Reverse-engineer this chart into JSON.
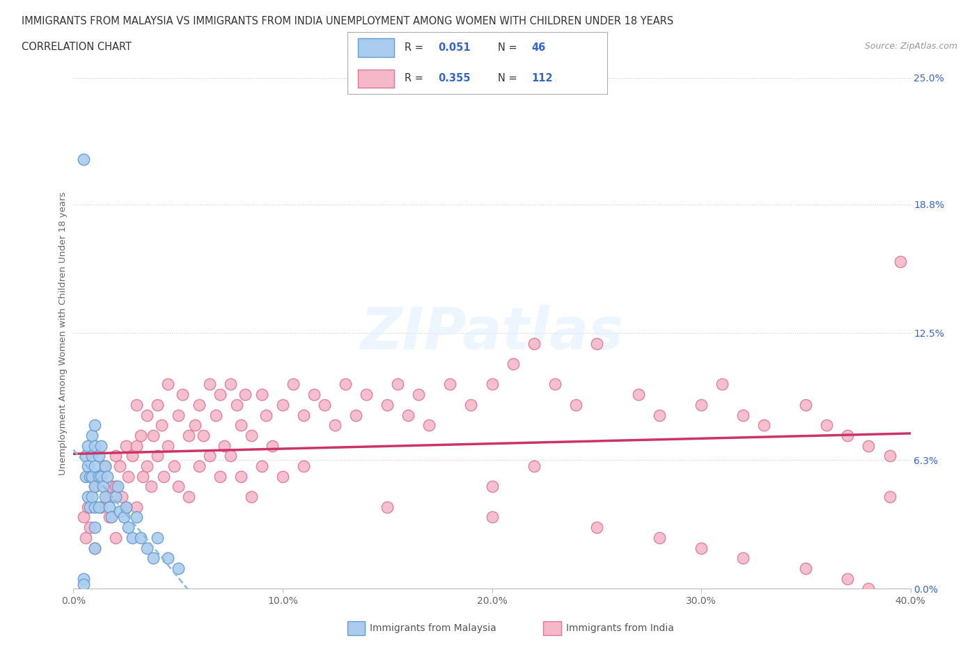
{
  "title_line1": "IMMIGRANTS FROM MALAYSIA VS IMMIGRANTS FROM INDIA UNEMPLOYMENT AMONG WOMEN WITH CHILDREN UNDER 18 YEARS",
  "title_line2": "CORRELATION CHART",
  "source_text": "Source: ZipAtlas.com",
  "ylabel": "Unemployment Among Women with Children Under 18 years",
  "xlim": [
    0.0,
    0.4
  ],
  "ylim": [
    0.0,
    0.25
  ],
  "xticks": [
    0.0,
    0.1,
    0.2,
    0.3,
    0.4
  ],
  "xticklabels": [
    "0.0%",
    "10.0%",
    "20.0%",
    "30.0%",
    "40.0%"
  ],
  "ytick_positions": [
    0.0,
    0.063,
    0.125,
    0.188,
    0.25
  ],
  "ytick_labels_right": [
    "0.0%",
    "6.3%",
    "12.5%",
    "18.8%",
    "25.0%"
  ],
  "grid_color": "#cccccc",
  "background_color": "#ffffff",
  "malaysia_color": "#aaccee",
  "malaysia_edge_color": "#6699cc",
  "india_color": "#f5b8c8",
  "india_edge_color": "#dd7799",
  "malaysia_R": "0.051",
  "malaysia_N": "46",
  "india_R": "0.355",
  "india_N": "112",
  "legend_R_color": "#3366cc",
  "watermark_text": "ZIPatlas",
  "india_trend_color": "#cc3366",
  "malaysia_trend_color": "#88bbdd",
  "malaysia_scatter_x": [
    0.005,
    0.005,
    0.005,
    0.006,
    0.006,
    0.007,
    0.007,
    0.007,
    0.008,
    0.008,
    0.009,
    0.009,
    0.009,
    0.009,
    0.01,
    0.01,
    0.01,
    0.01,
    0.01,
    0.01,
    0.01,
    0.012,
    0.012,
    0.012,
    0.013,
    0.013,
    0.014,
    0.015,
    0.015,
    0.016,
    0.017,
    0.018,
    0.02,
    0.021,
    0.022,
    0.024,
    0.025,
    0.026,
    0.028,
    0.03,
    0.032,
    0.035,
    0.038,
    0.04,
    0.045,
    0.05
  ],
  "malaysia_scatter_y": [
    0.21,
    0.005,
    0.002,
    0.065,
    0.055,
    0.07,
    0.06,
    0.045,
    0.055,
    0.04,
    0.075,
    0.065,
    0.055,
    0.045,
    0.08,
    0.07,
    0.06,
    0.05,
    0.04,
    0.03,
    0.02,
    0.065,
    0.055,
    0.04,
    0.07,
    0.055,
    0.05,
    0.06,
    0.045,
    0.055,
    0.04,
    0.035,
    0.045,
    0.05,
    0.038,
    0.035,
    0.04,
    0.03,
    0.025,
    0.035,
    0.025,
    0.02,
    0.015,
    0.025,
    0.015,
    0.01
  ],
  "india_scatter_x": [
    0.005,
    0.006,
    0.007,
    0.008,
    0.01,
    0.01,
    0.012,
    0.013,
    0.015,
    0.016,
    0.017,
    0.018,
    0.02,
    0.02,
    0.02,
    0.022,
    0.023,
    0.025,
    0.025,
    0.026,
    0.028,
    0.03,
    0.03,
    0.03,
    0.032,
    0.033,
    0.035,
    0.035,
    0.037,
    0.038,
    0.04,
    0.04,
    0.042,
    0.043,
    0.045,
    0.045,
    0.048,
    0.05,
    0.05,
    0.052,
    0.055,
    0.055,
    0.058,
    0.06,
    0.06,
    0.062,
    0.065,
    0.065,
    0.068,
    0.07,
    0.07,
    0.072,
    0.075,
    0.075,
    0.078,
    0.08,
    0.08,
    0.082,
    0.085,
    0.085,
    0.09,
    0.09,
    0.092,
    0.095,
    0.1,
    0.1,
    0.105,
    0.11,
    0.11,
    0.115,
    0.12,
    0.125,
    0.13,
    0.135,
    0.14,
    0.15,
    0.155,
    0.16,
    0.165,
    0.17,
    0.18,
    0.19,
    0.2,
    0.21,
    0.22,
    0.23,
    0.24,
    0.25,
    0.27,
    0.28,
    0.3,
    0.31,
    0.32,
    0.33,
    0.35,
    0.36,
    0.37,
    0.38,
    0.39,
    0.395,
    0.15,
    0.2,
    0.25,
    0.28,
    0.3,
    0.32,
    0.35,
    0.37,
    0.38,
    0.39,
    0.2,
    0.22
  ],
  "india_scatter_y": [
    0.035,
    0.025,
    0.04,
    0.03,
    0.05,
    0.02,
    0.055,
    0.04,
    0.06,
    0.045,
    0.035,
    0.05,
    0.065,
    0.05,
    0.025,
    0.06,
    0.045,
    0.07,
    0.04,
    0.055,
    0.065,
    0.09,
    0.07,
    0.04,
    0.075,
    0.055,
    0.085,
    0.06,
    0.05,
    0.075,
    0.09,
    0.065,
    0.08,
    0.055,
    0.1,
    0.07,
    0.06,
    0.085,
    0.05,
    0.095,
    0.075,
    0.045,
    0.08,
    0.09,
    0.06,
    0.075,
    0.1,
    0.065,
    0.085,
    0.095,
    0.055,
    0.07,
    0.1,
    0.065,
    0.09,
    0.08,
    0.055,
    0.095,
    0.075,
    0.045,
    0.095,
    0.06,
    0.085,
    0.07,
    0.09,
    0.055,
    0.1,
    0.085,
    0.06,
    0.095,
    0.09,
    0.08,
    0.1,
    0.085,
    0.095,
    0.09,
    0.1,
    0.085,
    0.095,
    0.08,
    0.1,
    0.09,
    0.1,
    0.11,
    0.12,
    0.1,
    0.09,
    0.12,
    0.095,
    0.085,
    0.09,
    0.1,
    0.085,
    0.08,
    0.09,
    0.08,
    0.075,
    0.07,
    0.065,
    0.16,
    0.04,
    0.035,
    0.03,
    0.025,
    0.02,
    0.015,
    0.01,
    0.005,
    0.0,
    0.045,
    0.05,
    0.06
  ]
}
